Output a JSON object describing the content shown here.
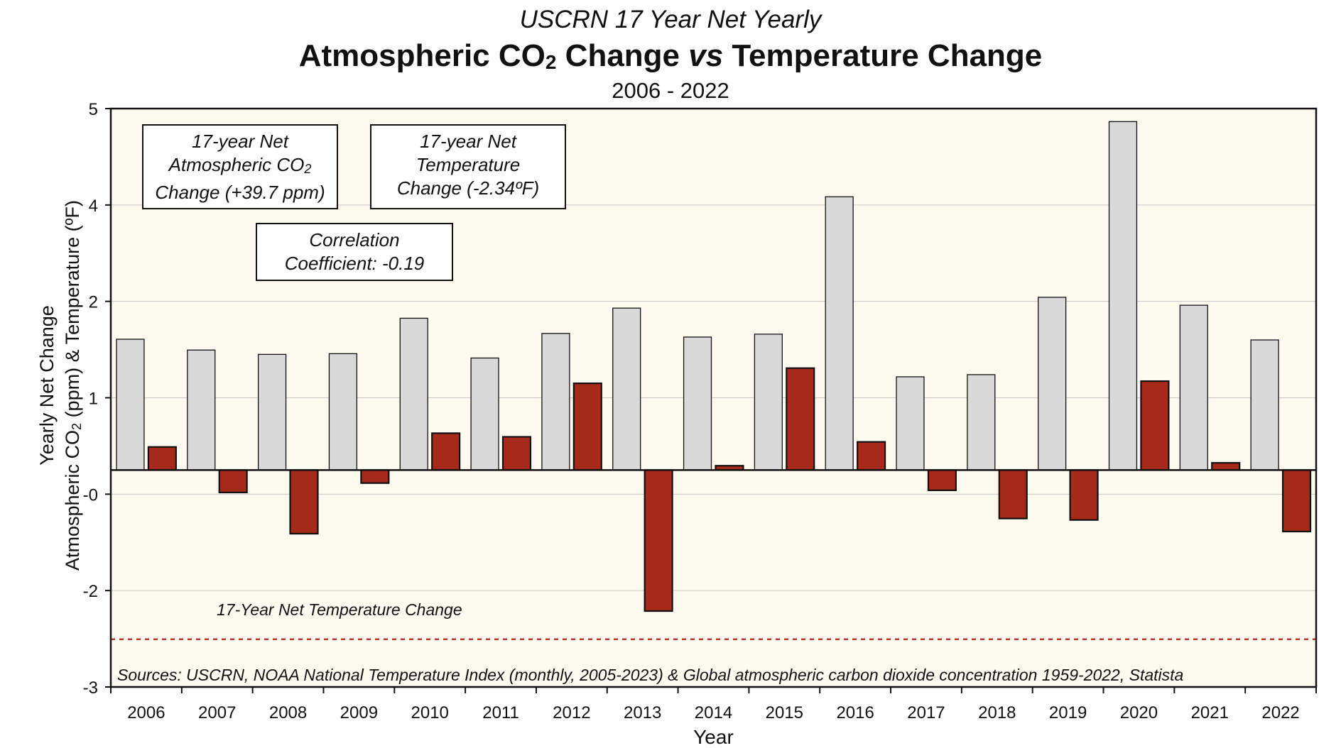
{
  "title": {
    "line1": "USCRN 17 Year Net Yearly",
    "line2_a": "Atmospheric CO",
    "line2_sub": "2",
    "line2_b": " Change ",
    "line2_vs": "vs",
    "line2_c": " Temperature Change",
    "line3": "2006 - 2022"
  },
  "boxes": {
    "co2": {
      "l1": "17-year Net",
      "l2a": "Atmospheric CO",
      "l2sub": "2",
      "l3": "Change (+39.7 ppm)"
    },
    "temp": {
      "l1": "17-year Net",
      "l2": "Temperature",
      "l3": "Change (-2.34ºF)"
    },
    "corr": {
      "l1": "Correlation",
      "l2": "Coefficient:  -0.19"
    }
  },
  "ylabel": {
    "line1": "Yearly Net Change",
    "line2a": "Atmospheric CO",
    "line2sub": "2",
    "line2b": " (ppm) & Temperature (ºF)"
  },
  "annotations": {
    "net_line_label": "17-Year Net Temperature Change",
    "sources": "Sources:  USCRN, NOAA National Temperature Index (monthly, 2005-2023) & Global atmospheric carbon dioxide concentration 1959-2022, Statista"
  },
  "chart_data": {
    "type": "bar",
    "xlabel": "Year",
    "ylim": [
      -3,
      5
    ],
    "ytick_labels": [
      "5",
      "4",
      "2",
      "1",
      "-0",
      "-2",
      "-3"
    ],
    "categories": [
      "2006",
      "2007",
      "2008",
      "2009",
      "2010",
      "2011",
      "2012",
      "2013",
      "2014",
      "2015",
      "2016",
      "2017",
      "2018",
      "2019",
      "2020",
      "2021",
      "2022"
    ],
    "series": [
      {
        "values": [
          1.81,
          1.66,
          1.6,
          1.61,
          2.1,
          1.55,
          1.89,
          2.24,
          1.84,
          1.88,
          3.78,
          1.29,
          1.32,
          2.39,
          4.82,
          2.28,
          1.8
        ],
        "color": "#d9d9d9"
      },
      {
        "values": [
          0.32,
          -0.31,
          -0.88,
          -0.18,
          0.51,
          0.46,
          1.2,
          -1.95,
          0.06,
          1.41,
          0.39,
          -0.28,
          -0.67,
          -0.69,
          1.23,
          0.1,
          -0.85
        ],
        "color": "#a52a1a"
      }
    ],
    "net_temperature_change": -2.34,
    "grid": true,
    "plot_background": "#fdfbf0"
  }
}
